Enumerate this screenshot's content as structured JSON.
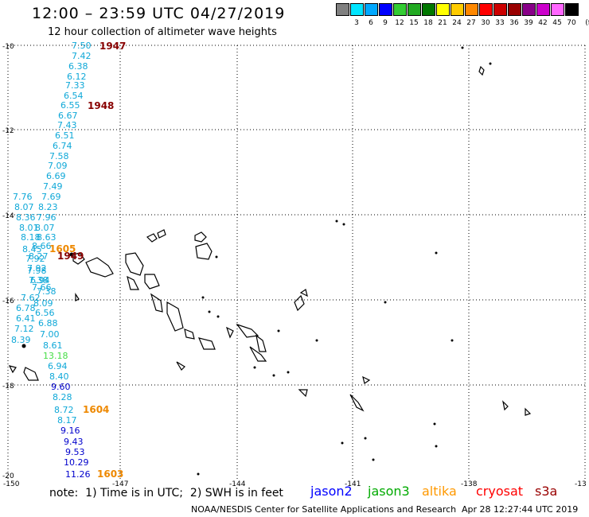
{
  "title": "12:00 – 23:59 UTC 04/27/2019",
  "subtitle": "12 hour collection of altimeter wave heights",
  "legend": {
    "unit": "(ft)",
    "bins": [
      {
        "label": "3",
        "color": "#808080"
      },
      {
        "label": "6",
        "color": "#00e5ff"
      },
      {
        "label": "9",
        "color": "#00a8ff"
      },
      {
        "label": "12",
        "color": "#0000ff"
      },
      {
        "label": "15",
        "color": "#33cc33"
      },
      {
        "label": "18",
        "color": "#22aa22"
      },
      {
        "label": "21",
        "color": "#007700"
      },
      {
        "label": "24",
        "color": "#ffff00"
      },
      {
        "label": "27",
        "color": "#ffcc00"
      },
      {
        "label": "30",
        "color": "#ff8800"
      },
      {
        "label": "33",
        "color": "#ff0000"
      },
      {
        "label": "36",
        "color": "#cc0000"
      },
      {
        "label": "39",
        "color": "#990000"
      },
      {
        "label": "42",
        "color": "#880088"
      },
      {
        "label": "45",
        "color": "#cc00cc"
      },
      {
        "label": "70",
        "color": "#ff66ff"
      },
      {
        "label": "",
        "color": "#000000"
      }
    ]
  },
  "axes": {
    "lon_labels": [
      "-150",
      "-147",
      "-144",
      "-141",
      "-138",
      "-13"
    ],
    "lat_labels": [
      "-10",
      "-12",
      "-14",
      "-16",
      "-18",
      "-20"
    ]
  },
  "track_colors": {
    "cyan": "#0fa8d8",
    "blue": "#0000cc",
    "green": "#44dd44"
  },
  "wave_heights": [
    {
      "v": "7.50",
      "c": "cyan"
    },
    {
      "v": "7.42",
      "c": "cyan"
    },
    {
      "v": "6.38",
      "c": "cyan"
    },
    {
      "v": "6.12",
      "c": "cyan"
    },
    {
      "v": "7.33",
      "c": "cyan"
    },
    {
      "v": "6.54",
      "c": "cyan"
    },
    {
      "v": "6.55",
      "c": "cyan"
    },
    {
      "v": "6.67",
      "c": "cyan"
    },
    {
      "v": "7.43",
      "c": "cyan"
    },
    {
      "v": "6.51",
      "c": "cyan"
    },
    {
      "v": "6.74",
      "c": "cyan"
    },
    {
      "v": "7.58",
      "c": "cyan"
    },
    {
      "v": "7.09",
      "c": "cyan"
    },
    {
      "v": "6.69",
      "c": "cyan"
    },
    {
      "v": "7.49",
      "c": "cyan"
    },
    {
      "v": "7.76",
      "c": "cyan"
    },
    {
      "v": "7.69",
      "c": "cyan"
    },
    {
      "v": "8.07",
      "c": "cyan"
    },
    {
      "v": "8.23",
      "c": "cyan"
    },
    {
      "v": "8.36",
      "c": "cyan"
    },
    {
      "v": "7.96",
      "c": "cyan"
    },
    {
      "v": "8.01",
      "c": "cyan"
    },
    {
      "v": "8.07",
      "c": "cyan"
    },
    {
      "v": "8.18",
      "c": "cyan"
    },
    {
      "v": "8.63",
      "c": "cyan"
    },
    {
      "v": "8.45",
      "c": "cyan"
    },
    {
      "v": "8.66",
      "c": "cyan"
    },
    {
      "v": "7.92",
      "c": "cyan"
    },
    {
      "v": "8.27",
      "c": "cyan"
    },
    {
      "v": "7.92",
      "c": "cyan"
    },
    {
      "v": "7.98",
      "c": "cyan"
    },
    {
      "v": "7.38",
      "c": "cyan"
    },
    {
      "v": "6.94",
      "c": "cyan"
    },
    {
      "v": "7.66",
      "c": "cyan"
    },
    {
      "v": "7.38",
      "c": "cyan"
    },
    {
      "v": "7.62",
      "c": "cyan"
    },
    {
      "v": "8.09",
      "c": "cyan"
    },
    {
      "v": "6.78",
      "c": "cyan"
    },
    {
      "v": "6.56",
      "c": "cyan"
    },
    {
      "v": "6.41",
      "c": "cyan"
    },
    {
      "v": "6.88",
      "c": "cyan"
    },
    {
      "v": "7.12",
      "c": "cyan"
    },
    {
      "v": "7.00",
      "c": "cyan"
    },
    {
      "v": "8.39",
      "c": "cyan"
    },
    {
      "v": "8.61",
      "c": "cyan"
    },
    {
      "v": "13.18",
      "c": "green"
    },
    {
      "v": "6.94",
      "c": "cyan"
    },
    {
      "v": "8.40",
      "c": "cyan"
    },
    {
      "v": "9.60",
      "c": "blue"
    },
    {
      "v": "8.28",
      "c": "cyan"
    },
    {
      "v": "8.72",
      "c": "cyan"
    },
    {
      "v": "8.17",
      "c": "cyan"
    },
    {
      "v": "9.16",
      "c": "blue"
    },
    {
      "v": "9.43",
      "c": "blue"
    },
    {
      "v": "9.53",
      "c": "blue"
    },
    {
      "v": "10.29",
      "c": "blue"
    },
    {
      "v": "11.26",
      "c": "blue"
    }
  ],
  "time_labels": [
    {
      "t": "1947",
      "color": "#880000"
    },
    {
      "t": "1948",
      "color": "#880000"
    },
    {
      "t": "1605",
      "color": "#ee8800"
    },
    {
      "t": "1949",
      "color": "#880000"
    },
    {
      "t": "1604",
      "color": "#ee8800"
    },
    {
      "t": "1603",
      "color": "#ee8800"
    }
  ],
  "footer": {
    "note": "note:  1) Time is in UTC;  2) SWH is in feet",
    "credit": "NOAA/NESDIS Center for Satellite Applications and Research",
    "stamp": "Apr 28 12:27:44 UTC 2019",
    "satellites": [
      {
        "name": "jason2",
        "color": "#0000ff"
      },
      {
        "name": "jason3",
        "color": "#00aa00"
      },
      {
        "name": "altika",
        "color": "#ff9900"
      },
      {
        "name": "cryosat",
        "color": "#ff0000"
      },
      {
        "name": "s3a",
        "color": "#990000"
      }
    ]
  }
}
